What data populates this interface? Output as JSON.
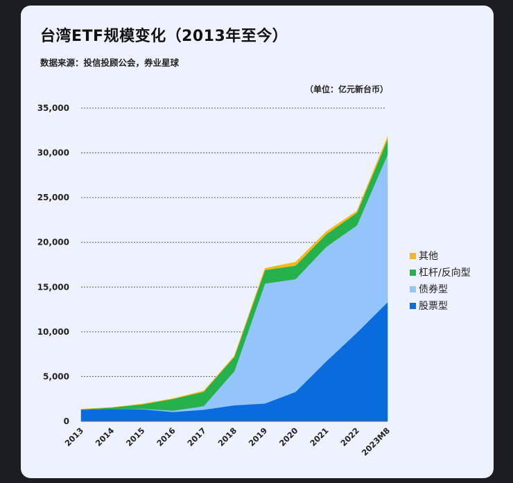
{
  "header": {
    "title": "台湾ETF规模变化（2013年至今）",
    "source": "数据来源：投信投顾公会，券业星球",
    "unit": "（单位：亿元新台币）"
  },
  "chart_data": {
    "type": "area",
    "stacked": true,
    "categories": [
      "2013",
      "2014",
      "2015",
      "2016",
      "2017",
      "2018",
      "2019",
      "2020",
      "2021",
      "2022",
      "2023M8"
    ],
    "series": [
      {
        "name": "股票型",
        "color": "#0a6cdc",
        "values": [
          1300,
          1400,
          1350,
          1050,
          1300,
          1800,
          2000,
          3300,
          6700,
          9900,
          13300
        ]
      },
      {
        "name": "债券型",
        "color": "#93c5fb",
        "values": [
          0,
          0,
          50,
          150,
          400,
          3800,
          13400,
          12600,
          12800,
          12000,
          16500
        ]
      },
      {
        "name": "杠杆/反向型",
        "color": "#25b14c",
        "values": [
          50,
          150,
          500,
          1300,
          1600,
          1600,
          1500,
          1500,
          1400,
          1400,
          1700
        ]
      },
      {
        "name": "其他",
        "color": "#f5b81c",
        "values": [
          0,
          0,
          50,
          50,
          100,
          100,
          200,
          400,
          300,
          200,
          300
        ]
      }
    ],
    "yticks": [
      "0",
      "5,000",
      "10,000",
      "15,000",
      "20,000",
      "25,000",
      "30,000",
      "35,000"
    ],
    "ylim": [
      0,
      35000
    ],
    "grid": true,
    "legend_position": "right",
    "xlabel": "",
    "ylabel": ""
  }
}
